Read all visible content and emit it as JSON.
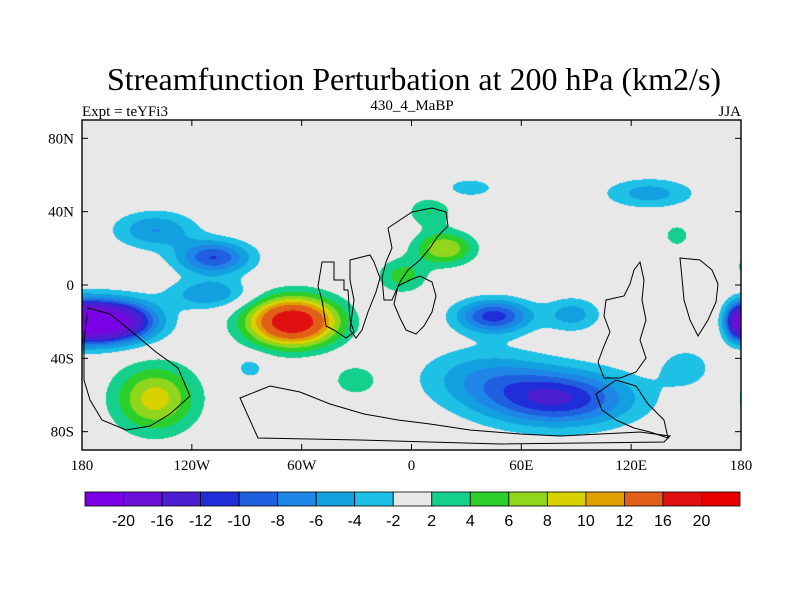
{
  "chart_data": {
    "type": "heatmap",
    "subtype": "filled-contour-map",
    "title": "Streamfunction Perturbation at 200 hPa (km2/s)",
    "left_subtitle": "Expt = teYFi3",
    "center_subtitle": "430_4_MaBP",
    "right_subtitle": "JJA",
    "xlim": [
      -180,
      180
    ],
    "ylim": [
      -90,
      90
    ],
    "x_ticks": [
      {
        "value": -180,
        "label": "180"
      },
      {
        "value": -120,
        "label": "120W"
      },
      {
        "value": -60,
        "label": "60W"
      },
      {
        "value": 0,
        "label": "0"
      },
      {
        "value": 60,
        "label": "60E"
      },
      {
        "value": 120,
        "label": "120E"
      },
      {
        "value": 180,
        "label": "180"
      }
    ],
    "y_ticks": [
      {
        "value": 80,
        "label": "80N"
      },
      {
        "value": 40,
        "label": "40N"
      },
      {
        "value": 0,
        "label": "0"
      },
      {
        "value": -40,
        "label": "40S"
      },
      {
        "value": -80,
        "label": "80S"
      }
    ],
    "contour_levels": [
      -20,
      -16,
      -12,
      -10,
      -8,
      -6,
      -4,
      -2,
      2,
      4,
      6,
      8,
      10,
      12,
      16,
      20
    ],
    "colorbar_colors": [
      "#7a00e6",
      "#6a10d8",
      "#4b1fd0",
      "#1f2ed8",
      "#2060e0",
      "#1e86e6",
      "#13a0e0",
      "#1ec0e6",
      "#e8e8e8",
      "#14d08c",
      "#2ccf2a",
      "#8fd61c",
      "#d8d200",
      "#e0a000",
      "#e06018",
      "#e01010",
      "#e80000"
    ],
    "anomalies": [
      {
        "lon": -165,
        "lat": -20,
        "value": -21,
        "rlon": 24,
        "rlat": 11
      },
      {
        "lon": -195,
        "lat": -20,
        "value": -21,
        "rlon": 24,
        "rlat": 11
      },
      {
        "lon": -110,
        "lat": -5,
        "value": -6,
        "rlon": 22,
        "rlat": 8
      },
      {
        "lon": -108,
        "lat": 15,
        "value": -10,
        "rlon": 20,
        "rlat": 9
      },
      {
        "lon": -140,
        "lat": 30,
        "value": -6,
        "rlon": 22,
        "rlat": 10
      },
      {
        "lon": -65,
        "lat": -20,
        "value": 20,
        "rlon": 24,
        "rlat": 13
      },
      {
        "lon": 18,
        "lat": 20,
        "value": 8,
        "rlon": 16,
        "rlat": 9
      },
      {
        "lon": -5,
        "lat": 5,
        "value": 5,
        "rlon": 13,
        "rlat": 9
      },
      {
        "lon": 10,
        "lat": 40,
        "value": 4,
        "rlon": 12,
        "rlat": 8
      },
      {
        "lon": 45,
        "lat": -17,
        "value": -11,
        "rlon": 20,
        "rlat": 9
      },
      {
        "lon": 88,
        "lat": -16,
        "value": -5,
        "rlon": 15,
        "rlat": 9
      },
      {
        "lon": 80,
        "lat": -62,
        "value": -12,
        "rlon": 40,
        "rlat": 15
      },
      {
        "lon": 40,
        "lat": -50,
        "value": -5,
        "rlon": 35,
        "rlat": 16
      },
      {
        "lon": 150,
        "lat": -45,
        "value": -3,
        "rlon": 16,
        "rlat": 12
      },
      {
        "lon": -140,
        "lat": -62,
        "value": 9,
        "rlon": 22,
        "rlat": 18
      },
      {
        "lon": 195,
        "lat": -62,
        "value": 7,
        "rlon": 14,
        "rlat": 18
      },
      {
        "lon": -30,
        "lat": -52,
        "value": 4,
        "rlon": 12,
        "rlat": 8
      },
      {
        "lon": -88,
        "lat": -45,
        "value": -3,
        "rlon": 9,
        "rlat": 7
      },
      {
        "lon": 130,
        "lat": 50,
        "value": -5,
        "rlon": 24,
        "rlat": 8
      },
      {
        "lon": 32,
        "lat": 53,
        "value": -3,
        "rlon": 16,
        "rlat": 6
      },
      {
        "lon": 145,
        "lat": 27,
        "value": 3,
        "rlon": 8,
        "rlat": 7
      },
      {
        "lon": 180,
        "lat": -20,
        "value": -22,
        "rlon": 8,
        "rlat": 10
      },
      {
        "lon": 182,
        "lat": 10,
        "value": 3,
        "rlon": 5,
        "rlat": 5
      }
    ]
  }
}
